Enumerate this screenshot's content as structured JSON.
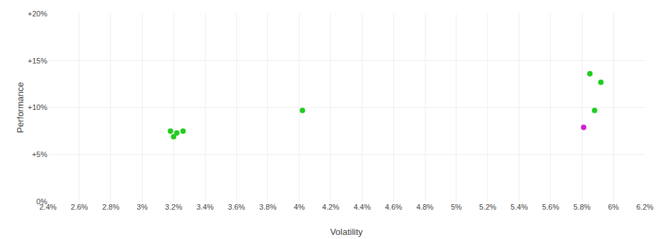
{
  "chart_data": {
    "type": "scatter",
    "xlabel": "Volatility",
    "ylabel": "Performance",
    "xlim": [
      0.024,
      0.062
    ],
    "ylim": [
      0.0,
      0.2
    ],
    "xticks": [
      {
        "value": 0.024,
        "label": "2.4%"
      },
      {
        "value": 0.026,
        "label": "2.6%"
      },
      {
        "value": 0.028,
        "label": "2.8%"
      },
      {
        "value": 0.03,
        "label": "3%"
      },
      {
        "value": 0.032,
        "label": "3.2%"
      },
      {
        "value": 0.034,
        "label": "3.4%"
      },
      {
        "value": 0.036,
        "label": "3.6%"
      },
      {
        "value": 0.038,
        "label": "3.8%"
      },
      {
        "value": 0.04,
        "label": "4%"
      },
      {
        "value": 0.042,
        "label": "4.2%"
      },
      {
        "value": 0.044,
        "label": "4.4%"
      },
      {
        "value": 0.046,
        "label": "4.6%"
      },
      {
        "value": 0.048,
        "label": "4.8%"
      },
      {
        "value": 0.05,
        "label": "5%"
      },
      {
        "value": 0.052,
        "label": "5.2%"
      },
      {
        "value": 0.054,
        "label": "5.4%"
      },
      {
        "value": 0.056,
        "label": "5.6%"
      },
      {
        "value": 0.058,
        "label": "5.8%"
      },
      {
        "value": 0.06,
        "label": "6%"
      },
      {
        "value": 0.062,
        "label": "6.2%"
      }
    ],
    "yticks": [
      {
        "value": 0.0,
        "label": "0%"
      },
      {
        "value": 0.05,
        "label": "+5%"
      },
      {
        "value": 0.1,
        "label": "+10%"
      },
      {
        "value": 0.15,
        "label": "+15%"
      },
      {
        "value": 0.2,
        "label": "+20%"
      }
    ],
    "grid": true,
    "series": [
      {
        "color": "#22cc22",
        "x": [
          0.0318,
          0.0322,
          0.0326,
          0.032,
          0.0402,
          0.0585,
          0.0592,
          0.0588
        ],
        "values": [
          0.075,
          0.073,
          0.075,
          0.069,
          0.097,
          0.136,
          0.127,
          0.097
        ]
      },
      {
        "color": "#cc22cc",
        "x": [
          0.0581
        ],
        "values": [
          0.079
        ]
      }
    ]
  }
}
